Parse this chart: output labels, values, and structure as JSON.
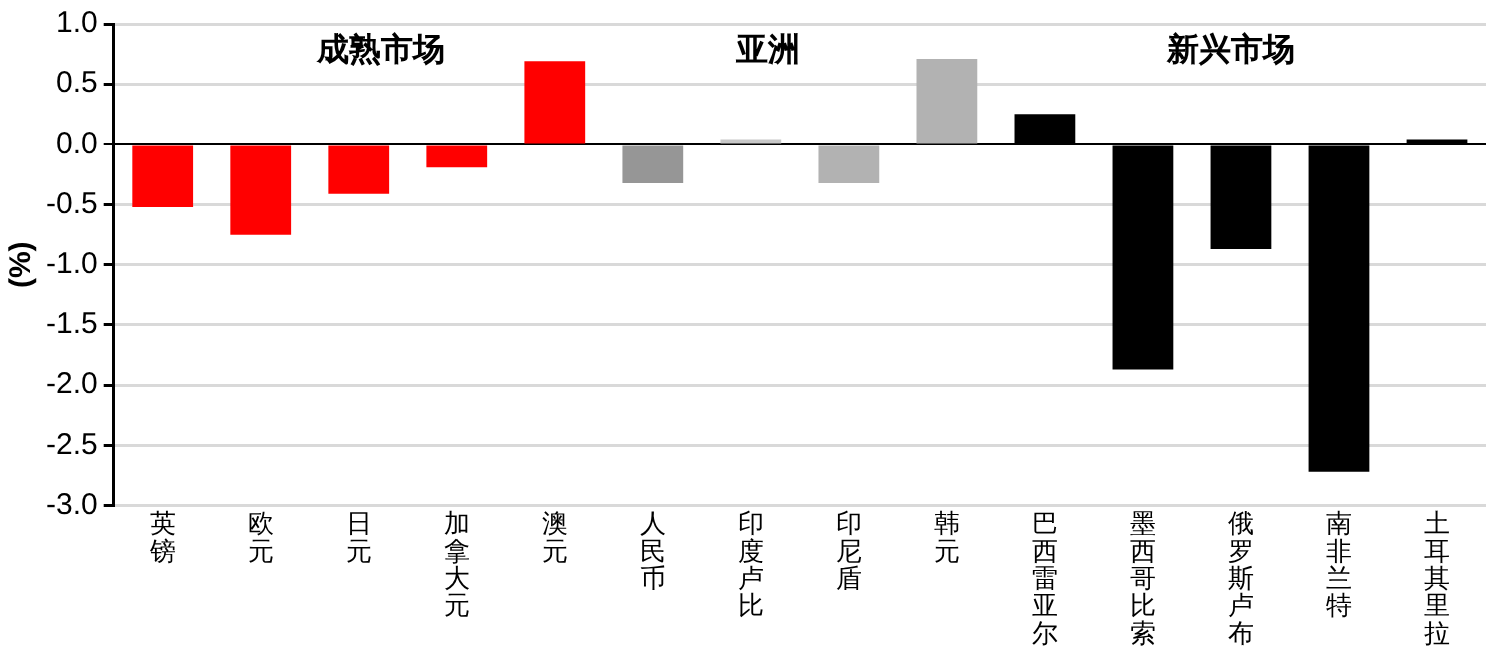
{
  "chart_data": {
    "type": "bar",
    "ylabel": "(%)",
    "categories": [
      "英镑",
      "欧元",
      "日元",
      "加拿大元",
      "澳元",
      "人民币",
      "印度卢比",
      "印尼盾",
      "韩元",
      "巴西雷亚尔",
      "墨西哥比索",
      "俄罗斯卢布",
      "南非兰特",
      "土耳其里拉"
    ],
    "values": [
      -0.52,
      -0.75,
      -0.41,
      -0.19,
      0.69,
      -0.32,
      0.04,
      -0.32,
      0.71,
      0.25,
      -1.87,
      -0.87,
      -2.72,
      0.04
    ],
    "colors": [
      "#ff0000",
      "#ff0000",
      "#ff0000",
      "#ff0000",
      "#ff0000",
      "#969696",
      "#c8c8c8",
      "#b2b2b2",
      "#b2b2b2",
      "#000000",
      "#000000",
      "#000000",
      "#000000",
      "#000000"
    ],
    "ylim": [
      -3,
      1
    ],
    "yticks": [
      {
        "value": -3,
        "label": "-3.0"
      },
      {
        "value": -2.5,
        "label": "-2.5"
      },
      {
        "value": -2,
        "label": "-2.0"
      },
      {
        "value": -1.5,
        "label": "-1.5"
      },
      {
        "value": -1,
        "label": "-1.0"
      },
      {
        "value": -0.5,
        "label": "-0.5"
      },
      {
        "value": 0,
        "label": "0.0"
      },
      {
        "value": 0.5,
        "label": "0.5"
      },
      {
        "value": 1,
        "label": "1.0"
      }
    ],
    "grid": "y",
    "annotations": [
      "成熟市场",
      "亚洲",
      "新兴市场"
    ]
  }
}
